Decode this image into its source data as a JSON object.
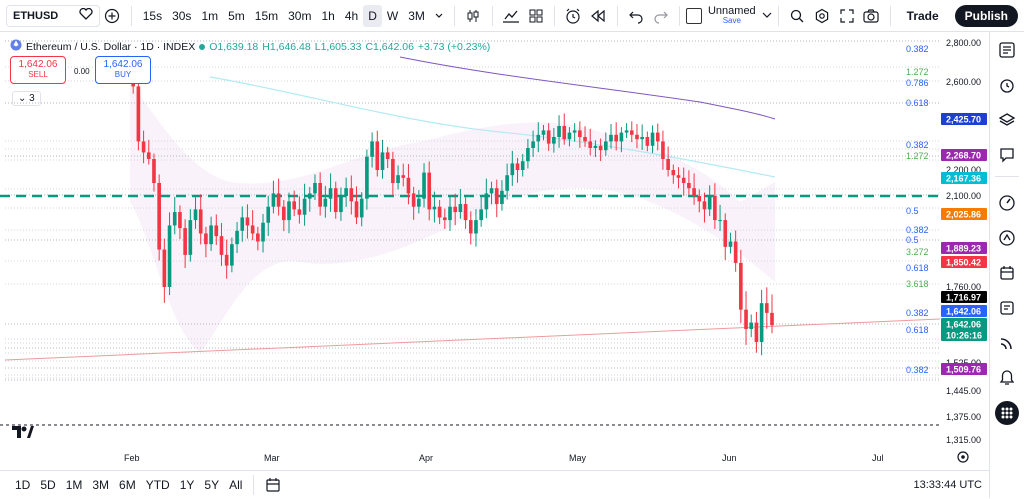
{
  "toolbar": {
    "symbol": "ETHUSD",
    "intervals": [
      "15s",
      "30s",
      "1m",
      "5m",
      "15m",
      "30m",
      "1h",
      "4h",
      "D",
      "W",
      "3M"
    ],
    "active_interval": "D",
    "layout_name": "Unnamed",
    "layout_save": "Save",
    "trade_label": "Trade",
    "publish_label": "Publish",
    "icons": [
      "heart-plus-icon",
      "add-icon",
      "candles-icon",
      "indicators-icon",
      "templates-icon",
      "alert-icon",
      "replay-icon",
      "undo-icon",
      "redo-icon",
      "search-icon",
      "settings-icon",
      "fullscreen-icon",
      "camera-icon"
    ]
  },
  "legend": {
    "title": "Ethereum / U.S. Dollar · 1D · INDEX",
    "o": "O1,639.18",
    "h": "H1,646.48",
    "l": "L1,605.33",
    "c": "C1,642.06",
    "change": "+3.73 (+0.23%)"
  },
  "trade": {
    "sell_price": "1,642.06",
    "sell_label": "SELL",
    "spread": "0.00",
    "buy_price": "1,642.06",
    "buy_label": "BUY",
    "collapse_count": "3"
  },
  "price_axis": {
    "ticks": [
      "2,800.00",
      "2,600.00",
      "2,200.00",
      "2,100.00",
      "1,760.00",
      "1,525.00",
      "1,445.00",
      "1,375.00",
      "1,315.00"
    ],
    "badges": [
      {
        "text": "2,425.70",
        "color": "#1e3fd1"
      },
      {
        "text": "2,268.70",
        "color": "#9c27b0"
      },
      {
        "text": "2,167.36",
        "color": "#00bcd4"
      },
      {
        "text": "2,025.86",
        "color": "#f57c00"
      },
      {
        "text": "1,889.23",
        "color": "#9c27b0"
      },
      {
        "text": "1,850.42",
        "color": "#f23645"
      },
      {
        "text": "1,716.97",
        "color": "#000000"
      },
      {
        "text": "1,642.06",
        "color": "#2962ff"
      },
      {
        "text": "1,642.06",
        "color": "#089981"
      },
      {
        "text": "10:26:16",
        "color": "#089981"
      },
      {
        "text": "1,509.76",
        "color": "#9c27b0"
      }
    ]
  },
  "fib_labels": [
    {
      "text": "0.382",
      "color": "#2962ff"
    },
    {
      "text": "1.272",
      "color": "#4caf50"
    },
    {
      "text": "0.786",
      "color": "#2962ff"
    },
    {
      "text": "0.618",
      "color": "#2962ff"
    },
    {
      "text": "0.382",
      "color": "#2962ff"
    },
    {
      "text": "1.272",
      "color": "#4caf50"
    },
    {
      "text": "0.5",
      "color": "#2962ff"
    },
    {
      "text": "0.382",
      "color": "#2962ff"
    },
    {
      "text": "0.5",
      "color": "#2962ff"
    },
    {
      "text": "3.272",
      "color": "#4caf50"
    },
    {
      "text": "0.618",
      "color": "#2962ff"
    },
    {
      "text": "3.618",
      "color": "#4caf50"
    },
    {
      "text": "0.382",
      "color": "#2962ff"
    },
    {
      "text": "0.618",
      "color": "#2962ff"
    },
    {
      "text": "0.382",
      "color": "#2962ff"
    }
  ],
  "time_axis": [
    "Feb",
    "Mar",
    "Apr",
    "May",
    "Jun",
    "Jul"
  ],
  "bottom": {
    "ranges": [
      "1D",
      "5D",
      "1M",
      "3M",
      "6M",
      "YTD",
      "1Y",
      "5Y",
      "All"
    ],
    "clock": "13:33:44 UTC"
  },
  "colors": {
    "up": "#089981",
    "down": "#f23645"
  },
  "chart_data": {
    "type": "candlestick",
    "symbol": "ETHUSD",
    "ohlc_last": {
      "open": 1639.18,
      "high": 1646.48,
      "low": 1605.33,
      "close": 1642.06
    },
    "closes": [
      2650,
      2580,
      2330,
      2280,
      2250,
      2150,
      1900,
      1760,
      1990,
      2040,
      1980,
      1880,
      2010,
      2050,
      1960,
      1920,
      1990,
      1950,
      1880,
      1840,
      1920,
      1970,
      2020,
      1990,
      1960,
      1930,
      2000,
      2060,
      2110,
      2060,
      2010,
      2080,
      2050,
      2030,
      2090,
      2110,
      2150,
      2060,
      2090,
      2130,
      2040,
      2100,
      2130,
      2080,
      2020,
      2090,
      2260,
      2330,
      2200,
      2280,
      2250,
      2150,
      2180,
      2170,
      2110,
      2060,
      2090,
      2190,
      2050,
      2060,
      2020,
      2010,
      2060,
      2040,
      2070,
      2010,
      1960,
      2010,
      2050,
      2110,
      2130,
      2070,
      2120,
      2180,
      2230,
      2200,
      2240,
      2300,
      2330,
      2360,
      2380,
      2320,
      2350,
      2400,
      2340,
      2370,
      2380,
      2350,
      2330,
      2300,
      2310,
      2290,
      2330,
      2360,
      2330,
      2370,
      2380,
      2360,
      2340,
      2350,
      2310,
      2370,
      2330,
      2250,
      2200,
      2180,
      2170,
      2150,
      2130,
      2100,
      2080,
      2050,
      2100,
      2010,
      2010,
      1910,
      1930,
      1850,
      1690,
      1630,
      1650,
      1590,
      1710,
      1680,
      1642
    ]
  }
}
